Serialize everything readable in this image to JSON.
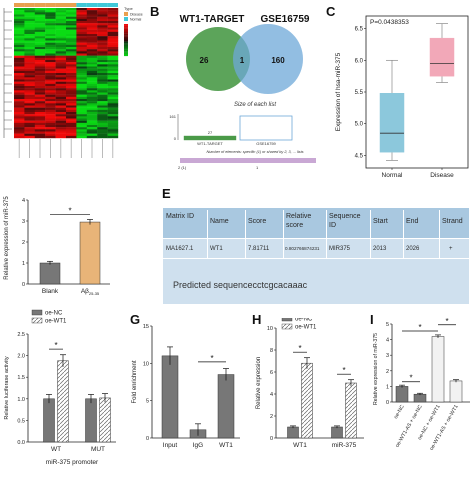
{
  "panels": {
    "a": "",
    "b": "B",
    "c": "C",
    "d": "",
    "e": "E",
    "f": "",
    "g": "G",
    "h": "H",
    "i": "I"
  },
  "panel_b": {
    "set_left": "WT1-TARGET",
    "set_right": "GSE16759",
    "only_left": "26",
    "overlap": "1",
    "only_right": "160",
    "size_title": "Size of each list",
    "size_left_value": "27",
    "size_axis_top": "161",
    "size_axis_zero": "0",
    "size_left_name": "WT1-TARGET",
    "size_right_name": "GSE16759",
    "size_caption": "Number of elements: specific (1) or shared by 2, 3, ... lists",
    "shared_tick_1": "2 (1)",
    "shared_tick_2": "1",
    "colors": {
      "left": "#4a9a48",
      "right": "#6ea8d8"
    }
  },
  "panel_e": {
    "headers": [
      "Matrix ID",
      "Name",
      "Score",
      "Relative score",
      "Sequence ID",
      "Start",
      "End",
      "Strand"
    ],
    "row": [
      "MA1627.1",
      "WT1",
      "7.81711",
      "0.802766874231",
      "MIR375",
      "2013",
      "2026",
      "+"
    ],
    "predicted": "Predicted sequencecctcgcacaaac"
  },
  "chart_data": [
    {
      "id": "heatmap",
      "type": "heatmap",
      "colorbar_label_top": "Type",
      "legend": [
        "Disease",
        "Normal"
      ],
      "colors": {
        "high": "#e02020",
        "low": "#10c020",
        "mid": "#000000"
      }
    },
    {
      "id": "C",
      "type": "box",
      "annotation": "P=0.0438353",
      "ylabel": "Expression of hsa-miR-375",
      "categories": [
        "Normal",
        "Disease"
      ],
      "yticks": [
        4.5,
        5.0,
        5.5,
        6.0,
        6.5
      ],
      "ylim": [
        4.3,
        6.7
      ],
      "boxes": [
        {
          "name": "Normal",
          "min": 4.42,
          "q1": 4.55,
          "median": 4.85,
          "q3": 5.48,
          "max": 6.0,
          "color": "#8cc8dc"
        },
        {
          "name": "Disease",
          "min": 5.65,
          "q1": 5.75,
          "median": 5.95,
          "q3": 6.35,
          "max": 6.58,
          "color": "#f2a8b8"
        }
      ]
    },
    {
      "id": "D",
      "type": "bar",
      "ylabel": "Relative expression of miR-375",
      "categories": [
        "Blank",
        "Aβ"
      ],
      "category_sub": [
        "",
        "25-35"
      ],
      "values": [
        1.0,
        2.95
      ],
      "errors": [
        0.08,
        0.12
      ],
      "yticks": [
        0,
        1,
        2,
        3,
        4
      ],
      "ylim": [
        0,
        4
      ],
      "significance": "*",
      "colors": [
        "#777777",
        "#e8b478"
      ]
    },
    {
      "id": "F",
      "type": "bar",
      "ylabel": "Relative luciferase activity",
      "xlabel": "miR-375 promoter",
      "categories": [
        "WT",
        "MUT"
      ],
      "series": [
        {
          "name": "oe-NC",
          "values": [
            1.0,
            1.0
          ],
          "errors": [
            0.1,
            0.1
          ]
        },
        {
          "name": "oe-WT1",
          "values": [
            1.88,
            1.02
          ],
          "errors": [
            0.14,
            0.1
          ]
        }
      ],
      "yticks": [
        0.0,
        0.5,
        1.0,
        1.5,
        2.0,
        2.5
      ],
      "ylim": [
        0,
        2.5
      ],
      "significance": "*"
    },
    {
      "id": "G",
      "type": "bar",
      "ylabel": "Fold enrichment",
      "categories": [
        "Input",
        "IgG",
        "WT1"
      ],
      "values": [
        11.0,
        1.1,
        8.5
      ],
      "errors": [
        1.2,
        0.8,
        0.8
      ],
      "yticks": [
        0,
        5,
        10,
        15
      ],
      "ylim": [
        0,
        15
      ],
      "significance": "*"
    },
    {
      "id": "H",
      "type": "bar",
      "ylabel": "Relative expression",
      "categories": [
        "WT1",
        "miR-375"
      ],
      "series": [
        {
          "name": "oe-NC",
          "values": [
            1.0,
            1.0
          ],
          "errors": [
            0.1,
            0.1
          ]
        },
        {
          "name": "oe-WT1",
          "values": [
            6.8,
            5.0
          ],
          "errors": [
            0.5,
            0.3
          ]
        }
      ],
      "yticks": [
        0,
        2,
        4,
        6,
        8,
        10
      ],
      "ylim": [
        0,
        10
      ],
      "significance": "*"
    },
    {
      "id": "I",
      "type": "bar",
      "ylabel": "Relative expression of miR-375",
      "categories": [
        "oe-NC",
        "oe-WT1-AS + oe-NC",
        "oe-NC + oe-WT1",
        "oe-WT1-AS + oe-WT1"
      ],
      "values": [
        1.0,
        0.5,
        4.2,
        1.35
      ],
      "errors": [
        0.08,
        0.06,
        0.1,
        0.08
      ],
      "yticks": [
        0,
        1,
        2,
        3,
        4,
        5
      ],
      "ylim": [
        0,
        5
      ],
      "significance": "*"
    }
  ]
}
